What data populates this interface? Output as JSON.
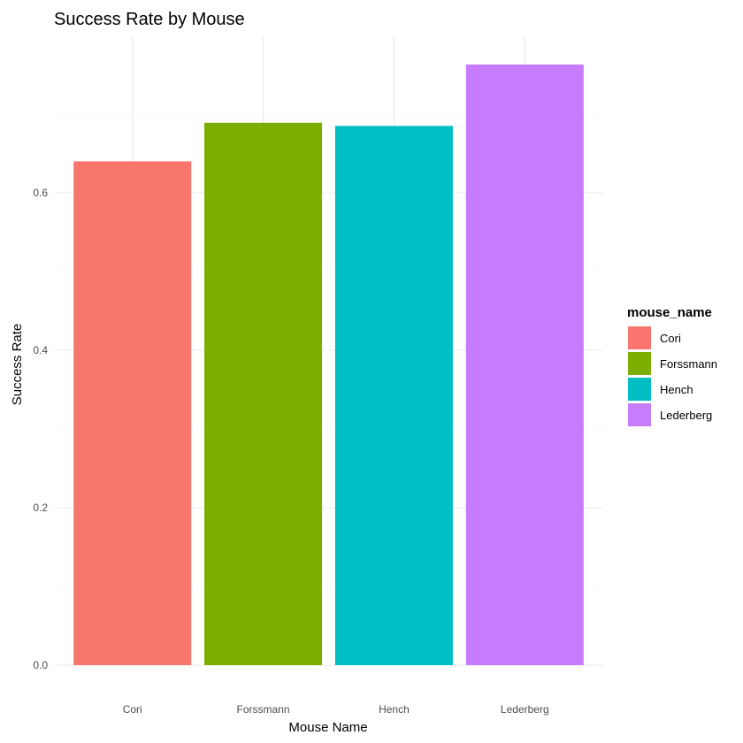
{
  "chart_data": {
    "type": "bar",
    "title": "Success Rate by Mouse",
    "xlabel": "Mouse Name",
    "ylabel": "Success Rate",
    "categories": [
      "Cori",
      "Forssmann",
      "Hench",
      "Lederberg"
    ],
    "values": [
      0.64,
      0.689,
      0.685,
      0.763
    ],
    "colors": [
      "#F8766D",
      "#7CAE00",
      "#00BFC4",
      "#C77CFF"
    ],
    "ylim": [
      0,
      0.8
    ],
    "yticks": [
      "0.0",
      "0.2",
      "0.4",
      "0.6"
    ],
    "ytick_values": [
      0,
      0.2,
      0.4,
      0.6
    ],
    "grid": true,
    "legend": {
      "title": "mouse_name",
      "position": "right",
      "entries": [
        "Cori",
        "Forssmann",
        "Hench",
        "Lederberg"
      ]
    }
  }
}
